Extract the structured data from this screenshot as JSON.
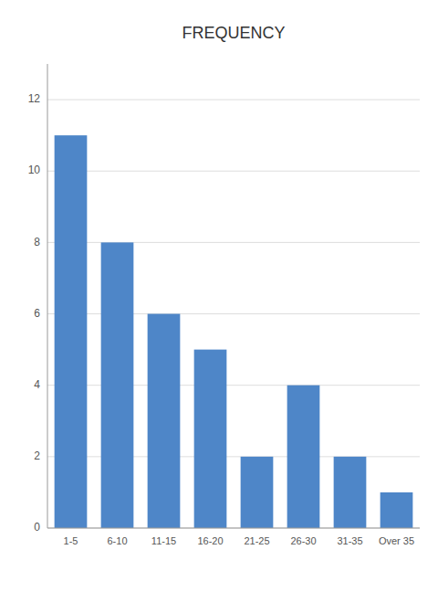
{
  "chart_data": {
    "type": "bar",
    "title": "FREQUENCY",
    "categories": [
      "1-5",
      "6-10",
      "11-15",
      "16-20",
      "21-25",
      "26-30",
      "31-35",
      "Over 35"
    ],
    "values": [
      11,
      8,
      6,
      5,
      2,
      4,
      2,
      1
    ],
    "color": "#4E86C8",
    "ylim": [
      0,
      13
    ],
    "yticks": [
      0,
      2,
      4,
      6,
      8,
      10,
      12
    ],
    "grid": true
  }
}
